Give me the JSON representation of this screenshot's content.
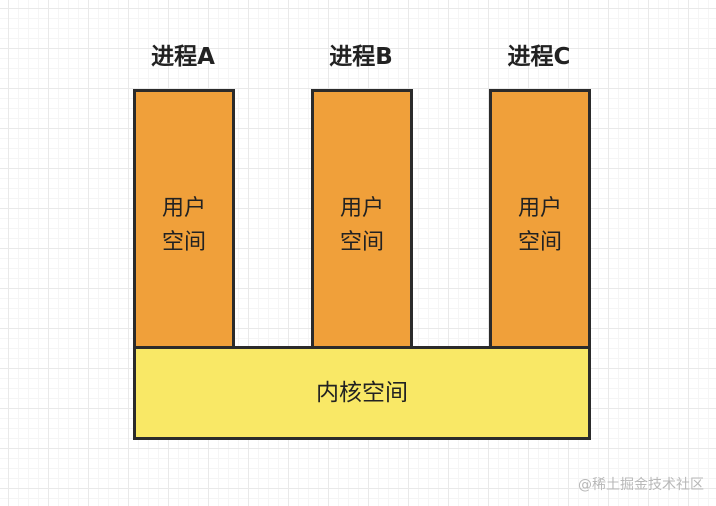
{
  "processes": [
    {
      "label": "进程A",
      "user_line1": "用户",
      "user_line2": "空间"
    },
    {
      "label": "进程B",
      "user_line1": "用户",
      "user_line2": "空间"
    },
    {
      "label": "进程C",
      "user_line1": "用户",
      "user_line2": "空间"
    }
  ],
  "kernel": {
    "label": "内核空间"
  },
  "watermark": "@稀土掘金技术社区",
  "colors": {
    "user_space": "#f0a03a",
    "kernel_space": "#f9e866",
    "border": "#2b2b2b"
  }
}
